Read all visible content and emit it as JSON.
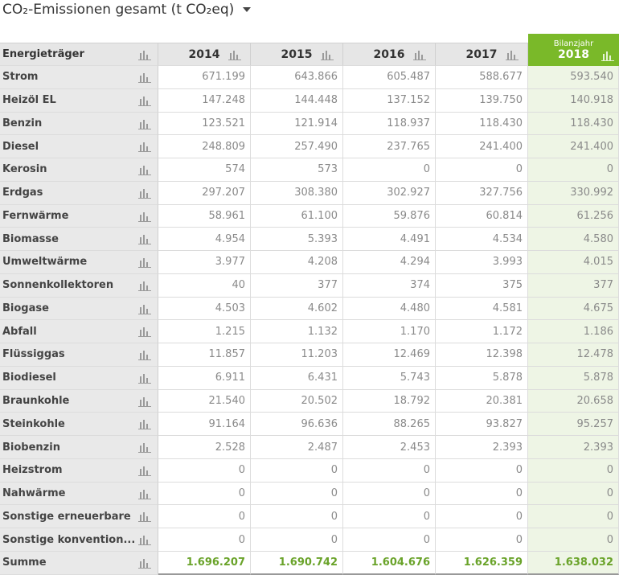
{
  "title": "CO₂-Emissionen gesamt (t CO₂eq)",
  "table": {
    "header": [
      "Energieträger",
      "2014",
      "2015",
      "2016",
      "2017"
    ],
    "highlight": {
      "caption": "Bilanzjahr",
      "year": "2018"
    },
    "rows": [
      [
        "Strom",
        "671.199",
        "643.866",
        "605.487",
        "588.677",
        "593.540"
      ],
      [
        "Heizöl EL",
        "147.248",
        "144.448",
        "137.152",
        "139.750",
        "140.918"
      ],
      [
        "Benzin",
        "123.521",
        "121.914",
        "118.937",
        "118.430",
        "118.430"
      ],
      [
        "Diesel",
        "248.809",
        "257.490",
        "237.765",
        "241.400",
        "241.400"
      ],
      [
        "Kerosin",
        "574",
        "573",
        "0",
        "0",
        "0"
      ],
      [
        "Erdgas",
        "297.207",
        "308.380",
        "302.927",
        "327.756",
        "330.992"
      ],
      [
        "Fernwärme",
        "58.961",
        "61.100",
        "59.876",
        "60.814",
        "61.256"
      ],
      [
        "Biomasse",
        "4.954",
        "5.393",
        "4.491",
        "4.534",
        "4.580"
      ],
      [
        "Umweltwärme",
        "3.977",
        "4.208",
        "4.294",
        "3.993",
        "4.015"
      ],
      [
        "Sonnenkollektoren",
        "40",
        "377",
        "374",
        "375",
        "377"
      ],
      [
        "Biogase",
        "4.503",
        "4.602",
        "4.480",
        "4.581",
        "4.675"
      ],
      [
        "Abfall",
        "1.215",
        "1.132",
        "1.170",
        "1.172",
        "1.186"
      ],
      [
        "Flüssiggas",
        "11.857",
        "11.203",
        "12.469",
        "12.398",
        "12.478"
      ],
      [
        "Biodiesel",
        "6.911",
        "6.431",
        "5.743",
        "5.878",
        "5.878"
      ],
      [
        "Braunkohle",
        "21.540",
        "20.502",
        "18.792",
        "20.381",
        "20.658"
      ],
      [
        "Steinkohle",
        "91.164",
        "96.636",
        "88.265",
        "93.827",
        "95.257"
      ],
      [
        "Biobenzin",
        "2.528",
        "2.487",
        "2.453",
        "2.393",
        "2.393"
      ],
      [
        "Heizstrom",
        "0",
        "0",
        "0",
        "0",
        "0"
      ],
      [
        "Nahwärme",
        "0",
        "0",
        "0",
        "0",
        "0"
      ],
      [
        "Sonstige erneuerbare",
        "0",
        "0",
        "0",
        "0",
        "0"
      ],
      [
        "Sonstige konvention...",
        "0",
        "0",
        "0",
        "0",
        "0"
      ]
    ],
    "total": [
      "Summe",
      "1.696.207",
      "1.690.742",
      "1.604.676",
      "1.626.359",
      "1.638.032"
    ]
  }
}
